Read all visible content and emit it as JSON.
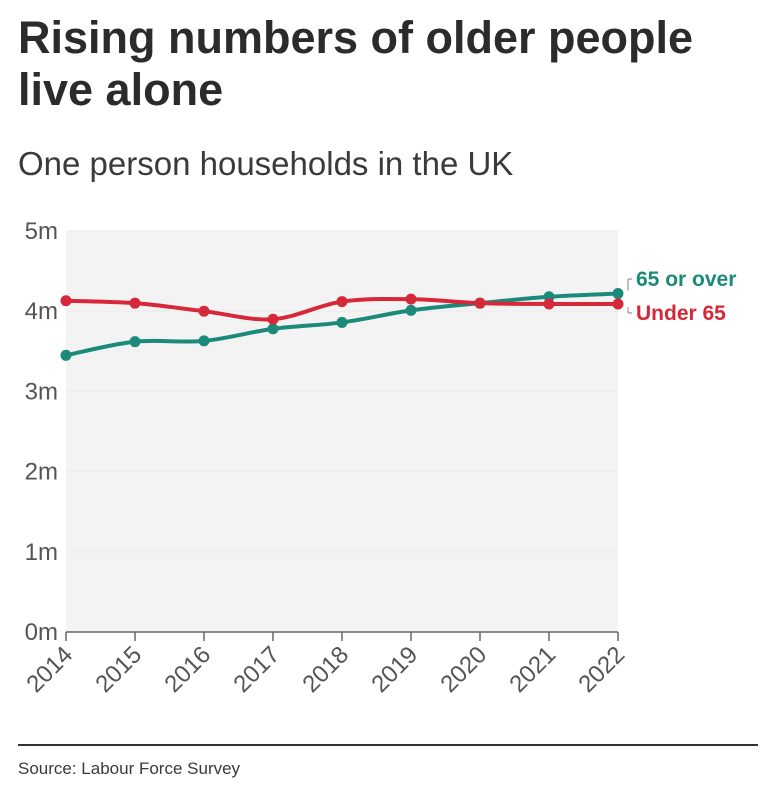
{
  "title": "Rising numbers of older people live alone",
  "subtitle": "One person households in the UK",
  "source": "Source: Labour Force Survey",
  "colors": {
    "over65": "#1b8a7a",
    "under65": "#d62839",
    "plot_bg": "#f3f3f3"
  },
  "chart_data": {
    "type": "line",
    "title": "Rising numbers of older people live alone",
    "subtitle": "One person households in the UK",
    "xlabel": "",
    "ylabel": "",
    "x": [
      "2014",
      "2015",
      "2016",
      "2017",
      "2018",
      "2019",
      "2020",
      "2021",
      "2022"
    ],
    "ylim": [
      0,
      5
    ],
    "yticks": [
      0,
      1,
      2,
      3,
      4,
      5
    ],
    "ytick_labels": [
      "0m",
      "1m",
      "2m",
      "3m",
      "4m",
      "5m"
    ],
    "grid": true,
    "legend": "right end of lines",
    "series": [
      {
        "name": "65 or over",
        "color": "#1b8a7a",
        "values": [
          3.45,
          3.62,
          3.63,
          3.78,
          3.86,
          4.01,
          4.1,
          4.18,
          4.22
        ]
      },
      {
        "name": "Under 65",
        "color": "#d62839",
        "values": [
          4.13,
          4.1,
          4.0,
          3.9,
          4.12,
          4.15,
          4.1,
          4.09,
          4.09
        ]
      }
    ]
  }
}
